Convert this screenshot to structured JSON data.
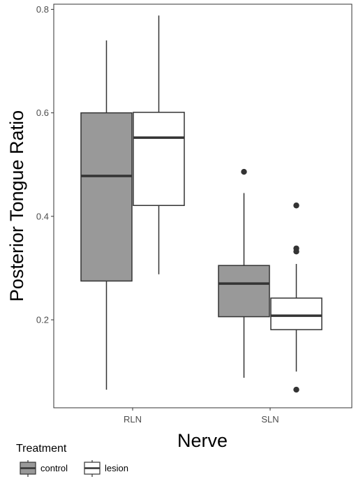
{
  "chart_data": {
    "type": "boxplot",
    "xlabel": "Nerve",
    "ylabel": "Posterior Tongue Ratio",
    "ylim": [
      0.03,
      0.81
    ],
    "yticks": [
      0.2,
      0.4,
      0.6,
      0.8
    ],
    "ytick_labels": [
      "0.2",
      "0.4",
      "0.6",
      "0.8"
    ],
    "categories": [
      "RLN",
      "SLN"
    ],
    "grid": false,
    "legend": {
      "title": "Treatment",
      "position": "bottom-left",
      "entries": [
        {
          "label": "control",
          "color": "#999999"
        },
        {
          "label": "lesion",
          "color": "#ffffff"
        }
      ]
    },
    "series": [
      {
        "name": "control",
        "color": "#999999",
        "boxes": [
          {
            "category": "RLN",
            "whisker_low": 0.065,
            "q1": 0.275,
            "median": 0.478,
            "q3": 0.6,
            "whisker_high": 0.74,
            "outliers": []
          },
          {
            "category": "SLN",
            "whisker_low": 0.088,
            "q1": 0.206,
            "median": 0.27,
            "q3": 0.305,
            "whisker_high": 0.445,
            "outliers": [
              0.486
            ]
          }
        ]
      },
      {
        "name": "lesion",
        "color": "#ffffff",
        "boxes": [
          {
            "category": "RLN",
            "whisker_low": 0.288,
            "q1": 0.421,
            "median": 0.552,
            "q3": 0.601,
            "whisker_high": 0.788,
            "outliers": []
          },
          {
            "category": "SLN",
            "whisker_low": 0.1,
            "q1": 0.181,
            "median": 0.208,
            "q3": 0.242,
            "whisker_high": 0.308,
            "outliers": [
              0.421,
              0.338,
              0.332,
              0.065
            ]
          }
        ]
      }
    ]
  }
}
